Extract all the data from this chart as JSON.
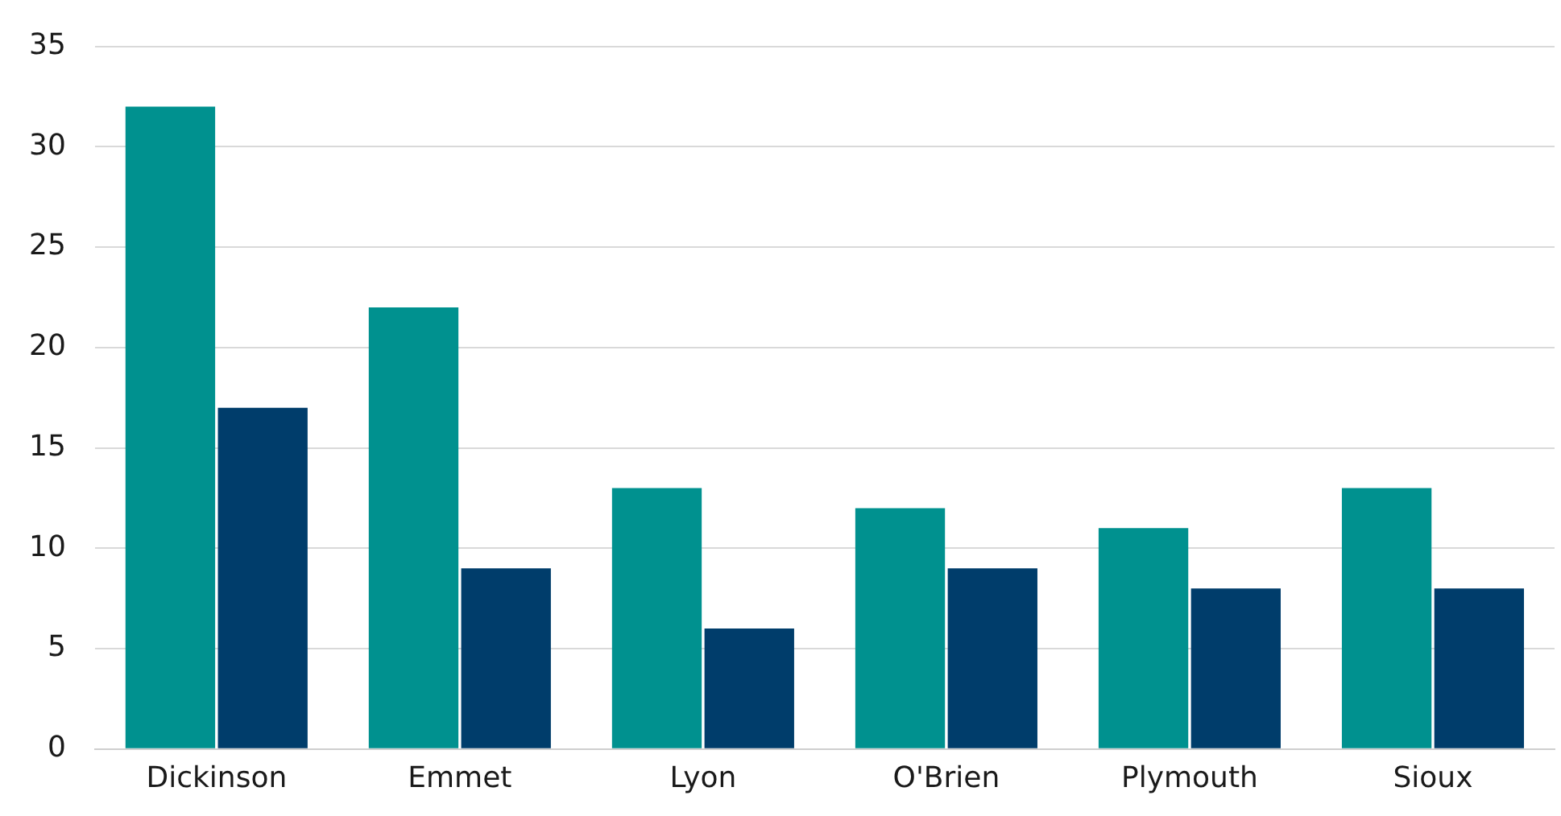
{
  "chart_data": {
    "type": "bar",
    "categories": [
      "Dickinson",
      "Emmet",
      "Lyon",
      "O'Brien",
      "Plymouth",
      "Sioux"
    ],
    "series": [
      {
        "color": "#00918f",
        "values": [
          32,
          22,
          13,
          12,
          11,
          13
        ]
      },
      {
        "color": "#003d6b",
        "values": [
          17,
          9,
          6,
          9,
          8,
          8
        ]
      }
    ],
    "ylim": [
      0,
      35
    ],
    "yticks": [
      0,
      5,
      10,
      15,
      20,
      25,
      30,
      35
    ],
    "grid": "y",
    "legend": false
  }
}
